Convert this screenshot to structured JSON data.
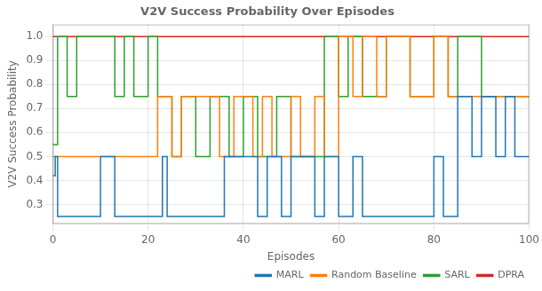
{
  "chart_data": {
    "type": "line",
    "title": "V2V Success Probability Over Episodes",
    "x_label": "Episodes",
    "y_label": "V2V Success Probability",
    "xlim": [
      0,
      100
    ],
    "ylim": [
      0.22,
      1.05
    ],
    "xticks": [
      0,
      20,
      40,
      60,
      80,
      100
    ],
    "yticks": [
      0.3,
      0.4,
      0.5,
      0.6,
      0.7,
      0.8,
      0.9,
      {
        "value": 1.0,
        "label": "1.0"
      }
    ],
    "grid": true,
    "legend": "lower right",
    "series": [
      {
        "name": "MARL",
        "color": "#1f77b4",
        "x": [
          0,
          0.5,
          0.5,
          1,
          1,
          10,
          10,
          13,
          13,
          23,
          23,
          24,
          24,
          36,
          36,
          43,
          43,
          45,
          45,
          48,
          48,
          50,
          50,
          55,
          55,
          57,
          57,
          60,
          60,
          63,
          63,
          65,
          65,
          80,
          80,
          82,
          82,
          85,
          85,
          88,
          88,
          90,
          90,
          93,
          93,
          95,
          95,
          97,
          97,
          100
        ],
        "values": [
          0.42,
          0.42,
          0.5,
          0.5,
          0.25,
          0.25,
          0.5,
          0.5,
          0.25,
          0.25,
          0.5,
          0.5,
          0.25,
          0.25,
          0.5,
          0.5,
          0.25,
          0.25,
          0.5,
          0.5,
          0.25,
          0.25,
          0.5,
          0.5,
          0.25,
          0.25,
          0.5,
          0.5,
          0.25,
          0.25,
          0.5,
          0.5,
          0.25,
          0.25,
          0.5,
          0.5,
          0.25,
          0.25,
          0.75,
          0.75,
          0.5,
          0.5,
          0.75,
          0.75,
          0.5,
          0.5,
          0.75,
          0.75,
          0.5,
          0.5
        ]
      },
      {
        "name": "Random Baseline",
        "color": "#ff7f0e",
        "x": [
          0,
          22,
          22,
          25,
          25,
          27,
          27,
          35,
          35,
          38,
          38,
          42,
          42,
          44,
          44,
          46,
          46,
          50,
          50,
          52,
          52,
          55,
          55,
          57,
          57,
          60,
          60,
          63,
          63,
          65,
          65,
          68,
          68,
          70,
          70,
          75,
          75,
          80,
          80,
          83,
          83,
          100
        ],
        "values": [
          0.5,
          0.5,
          0.75,
          0.75,
          0.5,
          0.5,
          0.75,
          0.75,
          0.5,
          0.5,
          0.75,
          0.75,
          0.5,
          0.5,
          0.75,
          0.75,
          0.5,
          0.5,
          0.75,
          0.75,
          0.5,
          0.5,
          0.75,
          0.75,
          0.5,
          0.5,
          1.0,
          1.0,
          0.75,
          0.75,
          1.0,
          1.0,
          0.75,
          0.75,
          1.0,
          1.0,
          0.75,
          0.75,
          1.0,
          1.0,
          0.75,
          0.75
        ]
      },
      {
        "name": "SARL",
        "color": "#2ca02c",
        "x": [
          0,
          1,
          1,
          3,
          3,
          5,
          5,
          13,
          13,
          15,
          15,
          17,
          17,
          20,
          20,
          22,
          22,
          25,
          25,
          27,
          27,
          30,
          30,
          33,
          33,
          37,
          37,
          40,
          40,
          43,
          43,
          47,
          47,
          50,
          50,
          57,
          57,
          60,
          60,
          62,
          62,
          65,
          65,
          70,
          70,
          75,
          75,
          80,
          80,
          83,
          83,
          85,
          85,
          90,
          90,
          100
        ],
        "values": [
          0.55,
          0.55,
          1.0,
          1.0,
          0.75,
          0.75,
          1.0,
          1.0,
          0.75,
          0.75,
          1.0,
          1.0,
          0.75,
          0.75,
          1.0,
          1.0,
          0.75,
          0.75,
          0.5,
          0.5,
          0.75,
          0.75,
          0.5,
          0.5,
          0.75,
          0.75,
          0.5,
          0.5,
          0.75,
          0.75,
          0.5,
          0.5,
          0.75,
          0.75,
          0.5,
          0.5,
          1.0,
          1.0,
          0.75,
          0.75,
          1.0,
          1.0,
          0.75,
          0.75,
          1.0,
          1.0,
          0.75,
          0.75,
          1.0,
          1.0,
          0.75,
          0.75,
          1.0,
          1.0,
          0.75,
          0.75
        ]
      },
      {
        "name": "DPRA",
        "color": "#d62728",
        "x": [
          0,
          100
        ],
        "values": [
          1.0,
          1.0
        ]
      }
    ]
  }
}
